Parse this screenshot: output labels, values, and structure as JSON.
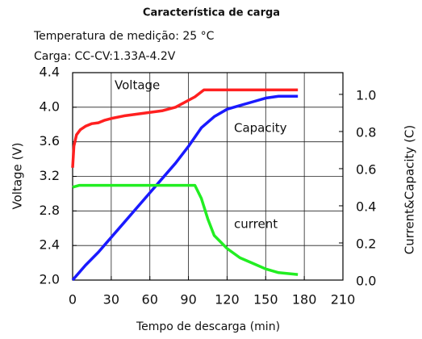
{
  "chart_data": {
    "type": "line",
    "title": "Característica de carga",
    "subtitle": [
      "Temperatura de medição: 25 °C",
      "Carga: CC-CV:1.33A-4.2V"
    ],
    "xlabel": "Tempo de descarga (min)",
    "ylabel": "Voltage  (V)",
    "y2label": "Current&Capacity  (C)",
    "annotations": [
      "Voltage",
      "Capacity",
      "current"
    ],
    "xlim": [
      0,
      210
    ],
    "xticks": [
      0,
      30,
      60,
      90,
      120,
      150,
      180,
      210
    ],
    "ylim": [
      2.0,
      4.4
    ],
    "yticks": [
      {
        "value": 2,
        "label": "2.0"
      },
      2.4,
      2.8,
      3.2,
      3.6,
      {
        "value": 4,
        "label": "4.0"
      },
      4.4
    ],
    "y2lim": [
      0,
      1.117
    ],
    "y2ticks": [
      {
        "value": 0,
        "label": "0.0"
      },
      0.2,
      0.4,
      0.6,
      0.8,
      {
        "value": 1,
        "label": "1.0"
      }
    ],
    "grid": true,
    "series": [
      {
        "name": "Voltage",
        "color": "#ff2020",
        "axis": "y",
        "x": [
          0,
          1,
          3,
          6,
          10,
          15,
          20,
          25,
          30,
          40,
          50,
          60,
          70,
          80,
          90,
          95,
          102,
          120,
          150,
          175
        ],
        "values": [
          3.3,
          3.55,
          3.68,
          3.74,
          3.78,
          3.81,
          3.82,
          3.85,
          3.87,
          3.9,
          3.92,
          3.94,
          3.96,
          4.0,
          4.08,
          4.12,
          4.2,
          4.2,
          4.2,
          4.2
        ]
      },
      {
        "name": "Capacity",
        "color": "#1a1aff",
        "axis": "y2",
        "x": [
          0,
          10,
          20,
          30,
          40,
          50,
          60,
          70,
          80,
          90,
          100,
          110,
          120,
          130,
          140,
          150,
          160,
          175
        ],
        "values": [
          0,
          0.08,
          0.15,
          0.23,
          0.31,
          0.39,
          0.47,
          0.55,
          0.63,
          0.72,
          0.82,
          0.88,
          0.92,
          0.94,
          0.96,
          0.98,
          0.99,
          0.99
        ]
      },
      {
        "name": "current",
        "color": "#22ee22",
        "axis": "y2",
        "x": [
          0,
          5,
          95,
          100,
          105,
          110,
          120,
          130,
          140,
          150,
          160,
          175
        ],
        "values": [
          0.5,
          0.51,
          0.51,
          0.44,
          0.33,
          0.24,
          0.17,
          0.12,
          0.09,
          0.06,
          0.04,
          0.03
        ]
      }
    ]
  }
}
